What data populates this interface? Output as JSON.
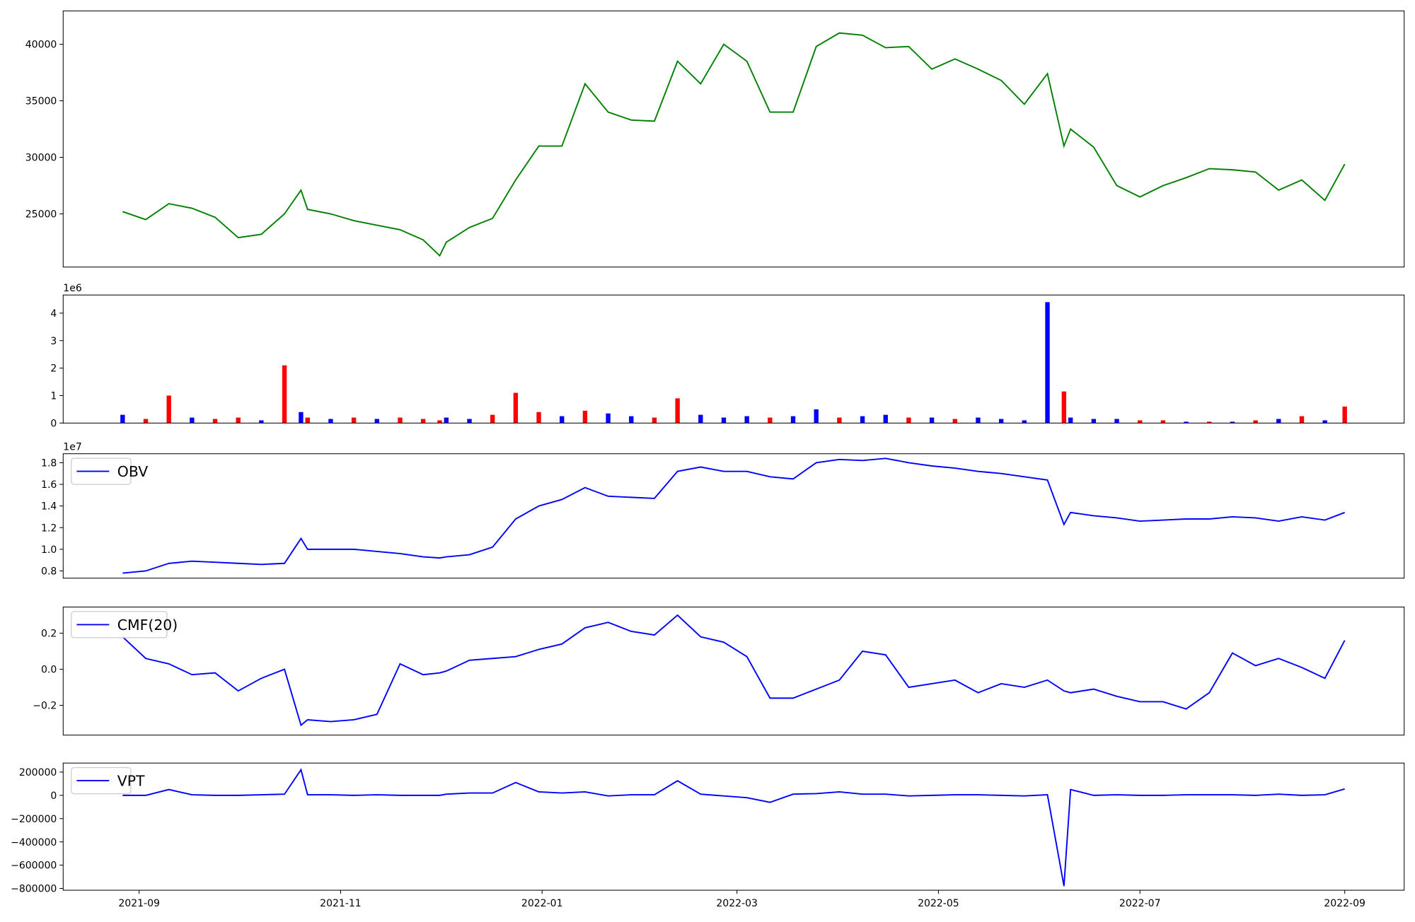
{
  "chart_data": [
    {
      "type": "line",
      "color": "#008000",
      "x": [
        "2021-08-27",
        "2021-09-03",
        "2021-09-10",
        "2021-09-17",
        "2021-09-24",
        "2021-10-01",
        "2021-10-08",
        "2021-10-15",
        "2021-10-20",
        "2021-10-22",
        "2021-10-29",
        "2021-11-05",
        "2021-11-12",
        "2021-11-19",
        "2021-11-26",
        "2021-12-01",
        "2021-12-03",
        "2021-12-10",
        "2021-12-17",
        "2021-12-24",
        "2021-12-31",
        "2022-01-07",
        "2022-01-14",
        "2022-01-21",
        "2022-01-28",
        "2022-02-04",
        "2022-02-11",
        "2022-02-18",
        "2022-02-25",
        "2022-03-04",
        "2022-03-11",
        "2022-03-18",
        "2022-03-25",
        "2022-04-01",
        "2022-04-08",
        "2022-04-15",
        "2022-04-22",
        "2022-04-29",
        "2022-05-06",
        "2022-05-13",
        "2022-05-20",
        "2022-05-27",
        "2022-06-03",
        "2022-06-08",
        "2022-06-10",
        "2022-06-17",
        "2022-06-24",
        "2022-07-01",
        "2022-07-08",
        "2022-07-15",
        "2022-07-22",
        "2022-07-29",
        "2022-08-05",
        "2022-08-12",
        "2022-08-19",
        "2022-08-26",
        "2022-09-01"
      ],
      "values": [
        25200,
        24500,
        25900,
        25500,
        24700,
        22900,
        23200,
        25000,
        27100,
        25400,
        25000,
        24400,
        24000,
        23600,
        22700,
        21300,
        22500,
        23800,
        24600,
        28000,
        31000,
        31000,
        36500,
        34000,
        33300,
        33200,
        38500,
        36500,
        40000,
        38500,
        34000,
        34000,
        39800,
        41000,
        40800,
        39700,
        39800,
        37800,
        38700,
        37800,
        36800,
        34700,
        37400,
        31000,
        32500,
        30900,
        27500,
        26500,
        27500,
        28200,
        29000,
        28900,
        28700,
        27100,
        28000,
        26200,
        29400
      ],
      "xlim": [
        "2021-08-09",
        "2022-09-19"
      ],
      "ylim": [
        20300,
        42950
      ],
      "yticks": [
        25000,
        30000,
        35000,
        40000
      ]
    },
    {
      "type": "bar",
      "offset_label": "1e6",
      "x": [
        "2021-08-27",
        "2021-09-03",
        "2021-09-10",
        "2021-09-17",
        "2021-09-24",
        "2021-10-01",
        "2021-10-08",
        "2021-10-15",
        "2021-10-20",
        "2021-10-22",
        "2021-10-29",
        "2021-11-05",
        "2021-11-12",
        "2021-11-19",
        "2021-11-26",
        "2021-12-01",
        "2021-12-03",
        "2021-12-10",
        "2021-12-17",
        "2021-12-24",
        "2021-12-31",
        "2022-01-07",
        "2022-01-14",
        "2022-01-21",
        "2022-01-28",
        "2022-02-04",
        "2022-02-11",
        "2022-02-18",
        "2022-02-25",
        "2022-03-04",
        "2022-03-11",
        "2022-03-18",
        "2022-03-25",
        "2022-04-01",
        "2022-04-08",
        "2022-04-15",
        "2022-04-22",
        "2022-04-29",
        "2022-05-06",
        "2022-05-13",
        "2022-05-20",
        "2022-05-27",
        "2022-06-03",
        "2022-06-08",
        "2022-06-10",
        "2022-06-17",
        "2022-06-24",
        "2022-07-01",
        "2022-07-08",
        "2022-07-15",
        "2022-07-22",
        "2022-07-29",
        "2022-08-05",
        "2022-08-12",
        "2022-08-19",
        "2022-08-26",
        "2022-09-01"
      ],
      "values": [
        0.3,
        0.15,
        1.0,
        0.2,
        0.15,
        0.2,
        0.1,
        2.1,
        0.4,
        0.2,
        0.15,
        0.2,
        0.15,
        0.2,
        0.15,
        0.1,
        0.2,
        0.15,
        0.3,
        1.1,
        0.4,
        0.25,
        0.45,
        0.35,
        0.25,
        0.2,
        0.9,
        0.3,
        0.2,
        0.25,
        0.2,
        0.25,
        0.5,
        0.2,
        0.25,
        0.3,
        0.2,
        0.2,
        0.15,
        0.2,
        0.15,
        0.1,
        4.4,
        1.15,
        0.2,
        0.15,
        0.15,
        0.1,
        0.1,
        0.05,
        0.05,
        0.05,
        0.1,
        0.15,
        0.25,
        0.1,
        0.6
      ],
      "colors": [
        "#0000ff",
        "#ff0000",
        "#ff0000",
        "#0000ff",
        "#ff0000",
        "#ff0000",
        "#0000ff",
        "#ff0000",
        "#0000ff",
        "#ff0000",
        "#0000ff",
        "#ff0000",
        "#0000ff",
        "#ff0000",
        "#ff0000",
        "#ff0000",
        "#0000ff",
        "#0000ff",
        "#ff0000",
        "#ff0000",
        "#ff0000",
        "#0000ff",
        "#ff0000",
        "#0000ff",
        "#0000ff",
        "#ff0000",
        "#ff0000",
        "#0000ff",
        "#0000ff",
        "#0000ff",
        "#ff0000",
        "#0000ff",
        "#0000ff",
        "#ff0000",
        "#0000ff",
        "#0000ff",
        "#ff0000",
        "#0000ff",
        "#ff0000",
        "#0000ff",
        "#0000ff",
        "#0000ff",
        "#0000ff",
        "#ff0000",
        "#0000ff",
        "#0000ff",
        "#0000ff",
        "#ff0000",
        "#ff0000",
        "#0000ff",
        "#ff0000",
        "#0000ff",
        "#ff0000",
        "#0000ff",
        "#ff0000",
        "#0000ff",
        "#ff0000"
      ],
      "xlim": [
        "2021-08-09",
        "2022-09-19"
      ],
      "ylim": [
        0,
        4.66
      ],
      "yticks": [
        0,
        1,
        2,
        3,
        4
      ]
    },
    {
      "type": "line",
      "offset_label": "1e7",
      "legend": "upper left",
      "x": [
        "2021-08-27",
        "2021-09-03",
        "2021-09-10",
        "2021-09-17",
        "2021-09-24",
        "2021-10-01",
        "2021-10-08",
        "2021-10-15",
        "2021-10-20",
        "2021-10-22",
        "2021-10-29",
        "2021-11-05",
        "2021-11-12",
        "2021-11-19",
        "2021-11-26",
        "2021-12-01",
        "2021-12-03",
        "2021-12-10",
        "2021-12-17",
        "2021-12-24",
        "2021-12-31",
        "2022-01-07",
        "2022-01-14",
        "2022-01-21",
        "2022-01-28",
        "2022-02-04",
        "2022-02-11",
        "2022-02-18",
        "2022-02-25",
        "2022-03-04",
        "2022-03-11",
        "2022-03-18",
        "2022-03-25",
        "2022-04-01",
        "2022-04-08",
        "2022-04-15",
        "2022-04-22",
        "2022-04-29",
        "2022-05-06",
        "2022-05-13",
        "2022-05-20",
        "2022-05-27",
        "2022-06-03",
        "2022-06-08",
        "2022-06-10",
        "2022-06-17",
        "2022-06-24",
        "2022-07-01",
        "2022-07-08",
        "2022-07-15",
        "2022-07-22",
        "2022-07-29",
        "2022-08-05",
        "2022-08-12",
        "2022-08-19",
        "2022-08-26",
        "2022-09-01"
      ],
      "series": [
        {
          "name": "OBV",
          "color": "#0000ff",
          "values": [
            0.78,
            0.8,
            0.87,
            0.89,
            0.88,
            0.87,
            0.86,
            0.87,
            1.1,
            1.0,
            1.0,
            1.0,
            0.98,
            0.96,
            0.93,
            0.92,
            0.93,
            0.95,
            1.02,
            1.28,
            1.4,
            1.46,
            1.57,
            1.49,
            1.48,
            1.47,
            1.72,
            1.76,
            1.72,
            1.72,
            1.67,
            1.65,
            1.8,
            1.83,
            1.82,
            1.84,
            1.8,
            1.77,
            1.75,
            1.72,
            1.7,
            1.67,
            1.64,
            1.23,
            1.34,
            1.31,
            1.29,
            1.26,
            1.27,
            1.28,
            1.28,
            1.3,
            1.29,
            1.26,
            1.3,
            1.27,
            1.34
          ]
        }
      ],
      "xlim": [
        "2021-08-09",
        "2022-09-19"
      ],
      "ylim": [
        0.733,
        1.883
      ],
      "yticks": [
        0.8,
        {
          "value": 1.0,
          "label": "1.0"
        },
        1.2,
        1.4,
        1.6,
        1.8
      ]
    },
    {
      "type": "line",
      "legend": "upper left",
      "x": [
        "2021-08-27",
        "2021-09-03",
        "2021-09-10",
        "2021-09-17",
        "2021-09-24",
        "2021-10-01",
        "2021-10-08",
        "2021-10-15",
        "2021-10-20",
        "2021-10-22",
        "2021-10-29",
        "2021-11-05",
        "2021-11-12",
        "2021-11-19",
        "2021-11-26",
        "2021-12-01",
        "2021-12-03",
        "2021-12-10",
        "2021-12-17",
        "2021-12-24",
        "2021-12-31",
        "2022-01-07",
        "2022-01-14",
        "2022-01-21",
        "2022-01-28",
        "2022-02-04",
        "2022-02-11",
        "2022-02-18",
        "2022-02-25",
        "2022-03-04",
        "2022-03-11",
        "2022-03-18",
        "2022-03-25",
        "2022-04-01",
        "2022-04-08",
        "2022-04-15",
        "2022-04-22",
        "2022-04-29",
        "2022-05-06",
        "2022-05-13",
        "2022-05-20",
        "2022-05-27",
        "2022-06-03",
        "2022-06-08",
        "2022-06-10",
        "2022-06-17",
        "2022-06-24",
        "2022-07-01",
        "2022-07-08",
        "2022-07-15",
        "2022-07-22",
        "2022-07-29",
        "2022-08-05",
        "2022-08-12",
        "2022-08-19",
        "2022-08-26",
        "2022-09-01"
      ],
      "series": [
        {
          "name": "CMF(20)",
          "color": "#0000ff",
          "values": [
            0.18,
            0.06,
            0.03,
            -0.03,
            -0.02,
            -0.12,
            -0.05,
            0.0,
            -0.31,
            -0.28,
            -0.29,
            -0.28,
            -0.25,
            0.03,
            -0.03,
            -0.02,
            -0.01,
            0.05,
            0.06,
            0.07,
            0.11,
            0.14,
            0.23,
            0.26,
            0.21,
            0.19,
            0.3,
            0.18,
            0.15,
            0.07,
            -0.16,
            -0.16,
            -0.11,
            -0.06,
            0.1,
            0.08,
            -0.1,
            -0.08,
            -0.06,
            -0.13,
            -0.08,
            -0.1,
            -0.06,
            -0.12,
            -0.13,
            -0.11,
            -0.15,
            -0.18,
            -0.18,
            -0.22,
            -0.13,
            0.09,
            0.02,
            0.06,
            0.01,
            -0.05,
            0.16
          ]
        }
      ],
      "xlim": [
        "2021-08-09",
        "2022-09-19"
      ],
      "ylim": [
        -0.365,
        0.345
      ],
      "yticks": [
        {
          "value": -0.2,
          "label": "−0.2"
        },
        {
          "value": 0,
          "label": "0.0"
        },
        {
          "value": 0.2,
          "label": "0.2"
        }
      ]
    },
    {
      "type": "line",
      "legend": "upper left",
      "x": [
        "2021-08-27",
        "2021-09-03",
        "2021-09-10",
        "2021-09-17",
        "2021-09-24",
        "2021-10-01",
        "2021-10-08",
        "2021-10-15",
        "2021-10-20",
        "2021-10-22",
        "2021-10-29",
        "2021-11-05",
        "2021-11-12",
        "2021-11-19",
        "2021-11-26",
        "2021-12-01",
        "2021-12-03",
        "2021-12-10",
        "2021-12-17",
        "2021-12-24",
        "2021-12-31",
        "2022-01-07",
        "2022-01-14",
        "2022-01-21",
        "2022-01-28",
        "2022-02-04",
        "2022-02-11",
        "2022-02-18",
        "2022-02-25",
        "2022-03-04",
        "2022-03-11",
        "2022-03-18",
        "2022-03-25",
        "2022-04-01",
        "2022-04-08",
        "2022-04-15",
        "2022-04-22",
        "2022-04-29",
        "2022-05-06",
        "2022-05-13",
        "2022-05-20",
        "2022-05-27",
        "2022-06-03",
        "2022-06-08",
        "2022-06-10",
        "2022-06-17",
        "2022-06-24",
        "2022-07-01",
        "2022-07-08",
        "2022-07-15",
        "2022-07-22",
        "2022-07-29",
        "2022-08-05",
        "2022-08-12",
        "2022-08-19",
        "2022-08-26",
        "2022-09-01"
      ],
      "series": [
        {
          "name": "VPT",
          "color": "#0000ff",
          "values": [
            0,
            0,
            50000,
            5000,
            0,
            0,
            5000,
            10000,
            220000,
            5000,
            5000,
            0,
            5000,
            0,
            0,
            0,
            10000,
            20000,
            20000,
            110000,
            30000,
            20000,
            30000,
            -5000,
            5000,
            5000,
            125000,
            10000,
            -5000,
            -20000,
            -60000,
            10000,
            15000,
            30000,
            10000,
            10000,
            -5000,
            0,
            5000,
            5000,
            0,
            -5000,
            5000,
            -780000,
            50000,
            0,
            5000,
            0,
            0,
            5000,
            5000,
            5000,
            0,
            10000,
            0,
            5000,
            55000
          ]
        }
      ],
      "xlim": [
        "2021-08-09",
        "2022-09-19"
      ],
      "ylim": [
        -815500,
        277500
      ],
      "yticks": [
        {
          "value": -800000,
          "label": "−800000"
        },
        {
          "value": -600000,
          "label": "−600000"
        },
        {
          "value": -400000,
          "label": "−400000"
        },
        {
          "value": -200000,
          "label": "−200000"
        },
        0,
        200000
      ],
      "xticks": [
        {
          "value": "2021-09-01",
          "label": "2021-09"
        },
        {
          "value": "2021-11-01",
          "label": "2021-11"
        },
        {
          "value": "2022-01-01",
          "label": "2022-01"
        },
        {
          "value": "2022-03-01",
          "label": "2022-03"
        },
        {
          "value": "2022-05-01",
          "label": "2022-05"
        },
        {
          "value": "2022-07-01",
          "label": "2022-07"
        },
        {
          "value": "2022-09-01",
          "label": "2022-09"
        }
      ]
    }
  ]
}
